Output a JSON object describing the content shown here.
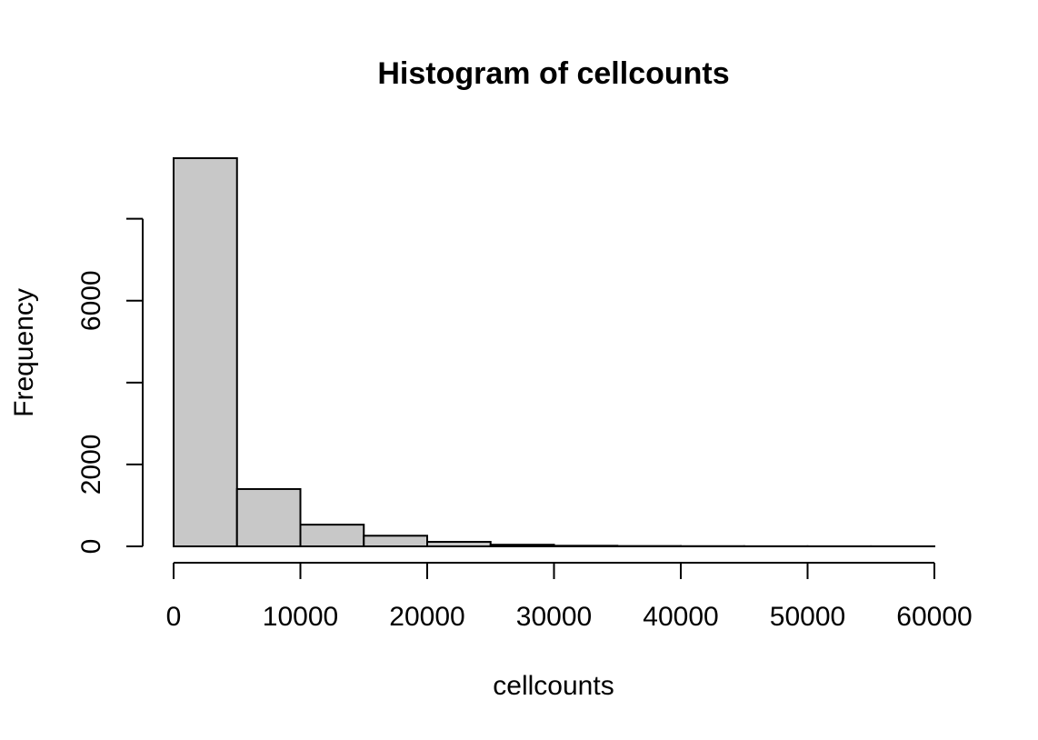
{
  "chart_data": {
    "type": "bar",
    "title": "Histogram of cellcounts",
    "xlabel": "cellcounts",
    "ylabel": "Frequency",
    "bin_edges": [
      0,
      5000,
      10000,
      15000,
      20000,
      25000,
      30000,
      35000,
      40000,
      45000,
      50000,
      55000,
      60000
    ],
    "values": [
      9480,
      1400,
      530,
      260,
      110,
      40,
      15,
      8,
      5,
      3,
      2,
      2
    ],
    "xlim": [
      0,
      60000
    ],
    "ylim": [
      0,
      9480
    ],
    "x_ticks": [
      0,
      10000,
      20000,
      30000,
      40000,
      50000,
      60000
    ],
    "x_tick_labels": [
      "0",
      "10000",
      "20000",
      "30000",
      "40000",
      "50000",
      "60000"
    ],
    "y_ticks": [
      0,
      2000,
      4000,
      6000,
      8000
    ],
    "y_tick_labels": [
      "0",
      "2000",
      "",
      "6000",
      ""
    ],
    "grid": false,
    "bar_fill": "#c8c8c8",
    "bar_stroke": "#000000"
  }
}
